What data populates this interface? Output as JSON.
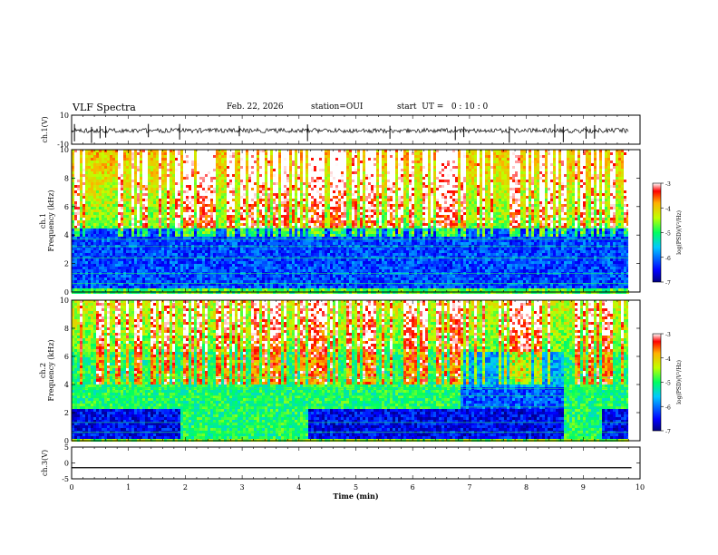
{
  "header": {
    "title": "VLF Spectra",
    "date": "Feb. 22, 2026",
    "station": "station=OUI",
    "start": "start  UT =   0 : 10 : 0"
  },
  "chart_data": [
    {
      "type": "line",
      "name": "ch1-waveform",
      "ylabel": "ch.1(V)",
      "ylim": [
        -10,
        10
      ],
      "yticks": [
        "10",
        "-10"
      ],
      "xlim": [
        0,
        10
      ],
      "description_values": {
        "baseline": 0,
        "spikes_min": [
          0.05,
          0.35,
          0.5,
          0.6,
          1.35,
          1.9,
          2.95,
          4.15,
          5.6,
          6.75,
          6.9,
          7.7,
          8.5,
          8.65,
          9.05,
          9.2
        ]
      }
    },
    {
      "type": "heatmap",
      "name": "ch1-spectrogram",
      "ylabel": "ch.1 Frequency (kHz)",
      "ylim": [
        0,
        10
      ],
      "xlim": [
        0,
        9.85
      ],
      "yticks": [
        "0",
        "2",
        "4",
        "6",
        "8",
        "10"
      ]
    },
    {
      "type": "heatmap",
      "name": "ch2-spectrogram",
      "ylabel": "ch.2 Frequency (kHz)",
      "ylim": [
        0,
        10
      ],
      "xlim": [
        0,
        9.85
      ],
      "yticks": [
        "0",
        "2",
        "4",
        "6",
        "8",
        "10"
      ]
    },
    {
      "type": "line",
      "name": "ch3-waveform",
      "ylabel": "ch.3(V)",
      "ylim": [
        -5,
        5
      ],
      "yticks": [
        "5",
        "0",
        "-5"
      ],
      "x": [
        0,
        9.85
      ],
      "y": [
        -1.5,
        -1.5
      ]
    }
  ],
  "xaxis": {
    "label": "Time  (min)",
    "ticks": [
      "0",
      "1",
      "2",
      "3",
      "4",
      "5",
      "6",
      "7",
      "8",
      "9",
      "10"
    ],
    "range": [
      0,
      10
    ]
  },
  "colorbar": {
    "label": "log(PSD)(V²/Hz)",
    "ticks": [
      "-3",
      "-4",
      "-5",
      "-6",
      "-7"
    ],
    "range": [
      -7,
      -3
    ]
  }
}
